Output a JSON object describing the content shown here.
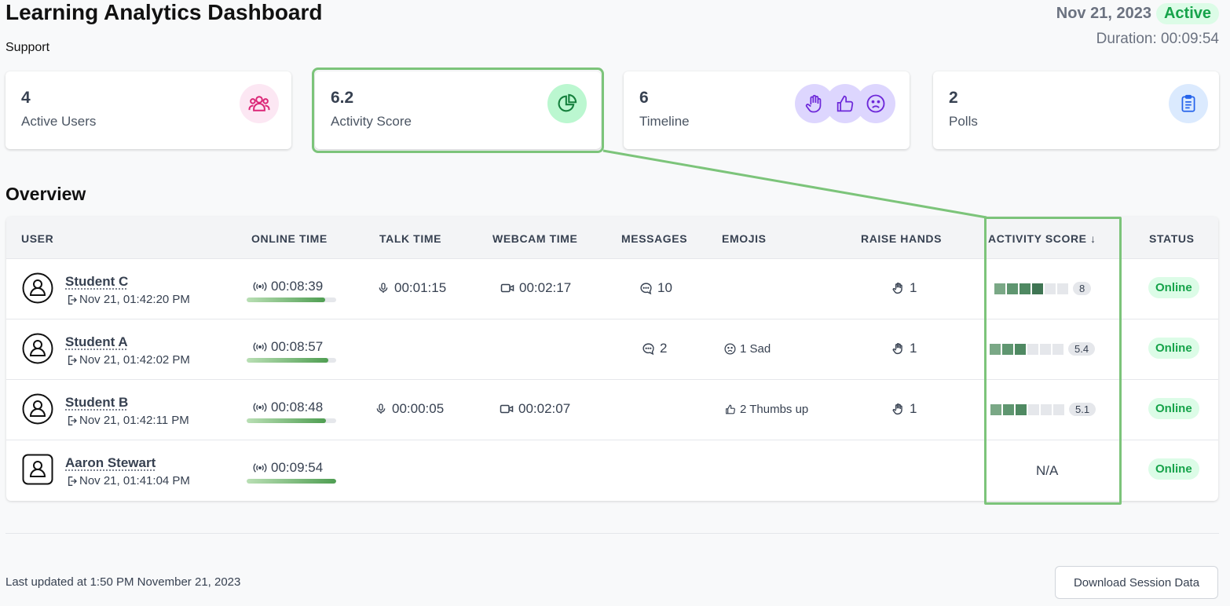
{
  "header": {
    "title": "Learning Analytics Dashboard",
    "subtitle": "Support",
    "date": "Nov 21, 2023",
    "status": "Active",
    "duration": "Duration: 00:09:54"
  },
  "cards": [
    {
      "value": "4",
      "label": "Active Users",
      "icon": "users-icon"
    },
    {
      "value": "6.2",
      "label": "Activity Score",
      "icon": "pie-chart-icon"
    },
    {
      "value": "6",
      "label": "Timeline",
      "icons": [
        "raise-hand-icon",
        "thumbs-up-icon",
        "sad-face-icon"
      ]
    },
    {
      "value": "2",
      "label": "Polls",
      "icon": "clipboard-icon"
    }
  ],
  "overview": {
    "title": "Overview",
    "columns": [
      "USER",
      "ONLINE TIME",
      "TALK TIME",
      "WEBCAM TIME",
      "MESSAGES",
      "EMOJIS",
      "RAISE HANDS",
      "ACTIVITY SCORE ↓",
      "STATUS"
    ],
    "rows": [
      {
        "name": "Student C",
        "joined": "Nov 21, 01:42:20 PM",
        "online": "00:08:39",
        "online_fraction": 0.88,
        "talk": "00:01:15",
        "webcam": "00:02:17",
        "messages": "10",
        "emojis": "",
        "raise_hands": "1",
        "score": "8",
        "score_blocks": 4,
        "status": "Online"
      },
      {
        "name": "Student A",
        "joined": "Nov 21, 01:42:02 PM",
        "online": "00:08:57",
        "online_fraction": 0.91,
        "talk": "",
        "webcam": "",
        "messages": "2",
        "emojis": "1 Sad",
        "raise_hands": "1",
        "score": "5.4",
        "score_blocks": 3,
        "status": "Online"
      },
      {
        "name": "Student B",
        "joined": "Nov 21, 01:42:11 PM",
        "online": "00:08:48",
        "online_fraction": 0.89,
        "talk": "00:00:05",
        "webcam": "00:02:07",
        "messages": "",
        "emojis": "2 Thumbs up",
        "raise_hands": "1",
        "score": "5.1",
        "score_blocks": 3,
        "status": "Online"
      },
      {
        "name": "Aaron Stewart",
        "joined": "Nov 21, 01:41:04 PM",
        "online": "00:09:54",
        "online_fraction": 1.0,
        "talk": "",
        "webcam": "",
        "messages": "",
        "emojis": "",
        "raise_hands": "",
        "score": "N/A",
        "score_blocks": 0,
        "status": "Online"
      }
    ]
  },
  "footer": {
    "last_updated": "Last updated at 1:50 PM November 21, 2023",
    "download_label": "Download Session Data"
  },
  "colors": {
    "accent_green": "#16a34a",
    "highlight": "#7cc47a",
    "score_block_colors": [
      "#7aa886",
      "#5f9670",
      "#4f8962",
      "#3f7553"
    ],
    "score_block_empty": "#e5e7eb"
  }
}
